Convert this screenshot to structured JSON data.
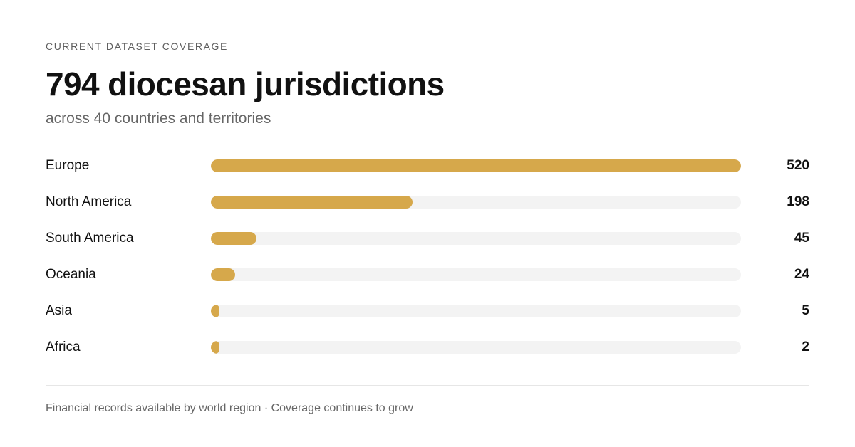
{
  "header": {
    "eyebrow": "CURRENT DATASET COVERAGE",
    "headline": "794 diocesan jurisdictions",
    "subhead": "across 40 countries and territories"
  },
  "footer": {
    "note": "Financial records available by world region · Coverage continues to grow"
  },
  "colors": {
    "bar_fill": "#d6a84b",
    "bar_track": "#f3f3f3"
  },
  "chart_data": {
    "type": "bar",
    "orientation": "horizontal",
    "categories": [
      "Europe",
      "North America",
      "South America",
      "Oceania",
      "Asia",
      "Africa"
    ],
    "values": [
      520,
      198,
      45,
      24,
      5,
      2
    ],
    "value_labels": [
      "520",
      "198",
      "45",
      "24",
      "5",
      "2"
    ],
    "xlim": [
      0,
      520
    ],
    "grid": false,
    "legend": "none"
  }
}
